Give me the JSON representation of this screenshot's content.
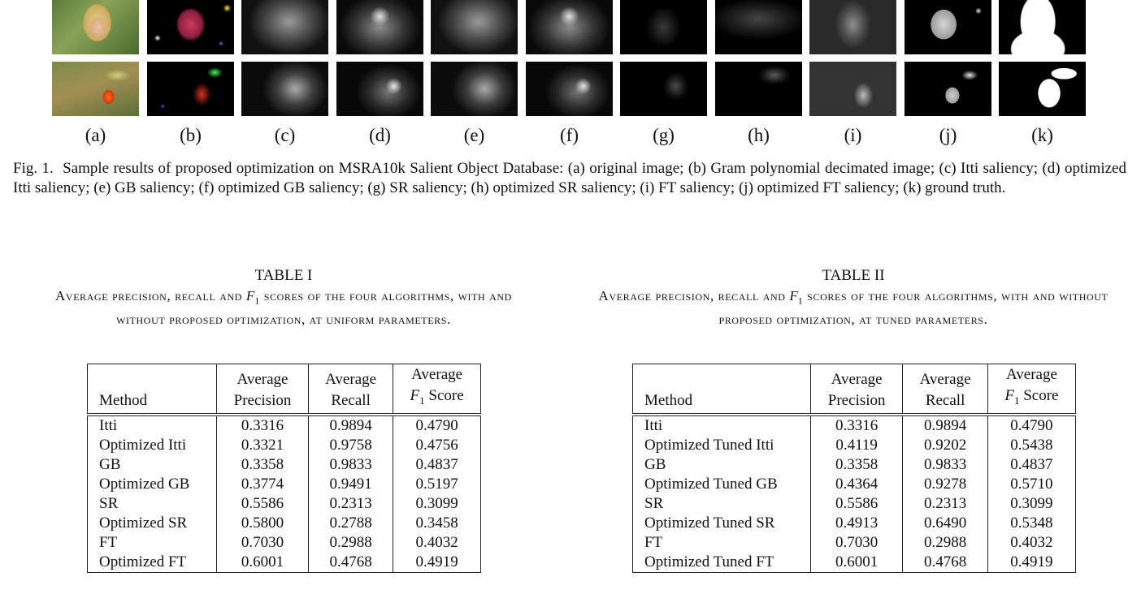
{
  "figure": {
    "panel_labels": [
      "(a)",
      "(b)",
      "(c)",
      "(d)",
      "(e)",
      "(f)",
      "(g)",
      "(h)",
      "(i)",
      "(j)",
      "(k)"
    ],
    "caption_label": "Fig. 1.",
    "caption_text": "Sample results of proposed optimization on MSRA10k Salient Object Database: (a) original image; (b) Gram polynomial decimated image; (c) Itti saliency; (d) optimized Itti saliency; (e) GB saliency; (f) optimized GB saliency; (g) SR saliency; (h) optimized SR saliency; (i) FT saliency; (j) optimized FT saliency; (k) ground truth."
  },
  "table1": {
    "title": "TABLE I",
    "sub_a": "Average precision, recall and",
    "sub_f": "F",
    "sub_sub": "1",
    "sub_b": "scores of the four algorithms, with and without proposed optimization, at uniform parameters.",
    "headers": {
      "method": "Method",
      "precision_top": "Average",
      "precision_bottom": "Precision",
      "recall_top": "Average",
      "recall_bottom": "Recall",
      "f1_top": "Average",
      "f1_f": "F",
      "f1_sub": "1",
      "f1_bottom": "Score"
    },
    "rows": [
      {
        "method": "Itti",
        "precision": "0.3316",
        "recall": "0.9894",
        "f1": "0.4790"
      },
      {
        "method": "Optimized Itti",
        "precision": "0.3321",
        "recall": "0.9758",
        "f1": "0.4756"
      },
      {
        "method": "GB",
        "precision": "0.3358",
        "recall": "0.9833",
        "f1": "0.4837"
      },
      {
        "method": "Optimized GB",
        "precision": "0.3774",
        "recall": "0.9491",
        "f1": "0.5197"
      },
      {
        "method": "SR",
        "precision": "0.5586",
        "recall": "0.2313",
        "f1": "0.3099"
      },
      {
        "method": "Optimized SR",
        "precision": "0.5800",
        "recall": "0.2788",
        "f1": "0.3458"
      },
      {
        "method": "FT",
        "precision": "0.7030",
        "recall": "0.2988",
        "f1": "0.4032"
      },
      {
        "method": "Optimized FT",
        "precision": "0.6001",
        "recall": "0.4768",
        "f1": "0.4919"
      }
    ]
  },
  "table2": {
    "title": "TABLE II",
    "sub_a": "Average precision, recall and",
    "sub_f": "F",
    "sub_sub": "1",
    "sub_b": "scores of the four algorithms, with and without proposed optimization, at tuned parameters.",
    "headers": {
      "method": "Method",
      "precision_top": "Average",
      "precision_bottom": "Precision",
      "recall_top": "Average",
      "recall_bottom": "Recall",
      "f1_top": "Average",
      "f1_f": "F",
      "f1_sub": "1",
      "f1_bottom": "Score"
    },
    "rows": [
      {
        "method": "Itti",
        "precision": "0.3316",
        "recall": "0.9894",
        "f1": "0.4790"
      },
      {
        "method": "Optimized Tuned Itti",
        "precision": "0.4119",
        "recall": "0.9202",
        "f1": "0.5438"
      },
      {
        "method": "GB",
        "precision": "0.3358",
        "recall": "0.9833",
        "f1": "0.4837"
      },
      {
        "method": "Optimized Tuned GB",
        "precision": "0.4364",
        "recall": "0.9278",
        "f1": "0.5710"
      },
      {
        "method": "SR",
        "precision": "0.5586",
        "recall": "0.2313",
        "f1": "0.3099"
      },
      {
        "method": "Optimized Tuned SR",
        "precision": "0.4913",
        "recall": "0.6490",
        "f1": "0.5348"
      },
      {
        "method": "FT",
        "precision": "0.7030",
        "recall": "0.2988",
        "f1": "0.4032"
      },
      {
        "method": "Optimized Tuned FT",
        "precision": "0.6001",
        "recall": "0.4768",
        "f1": "0.4919"
      }
    ]
  }
}
